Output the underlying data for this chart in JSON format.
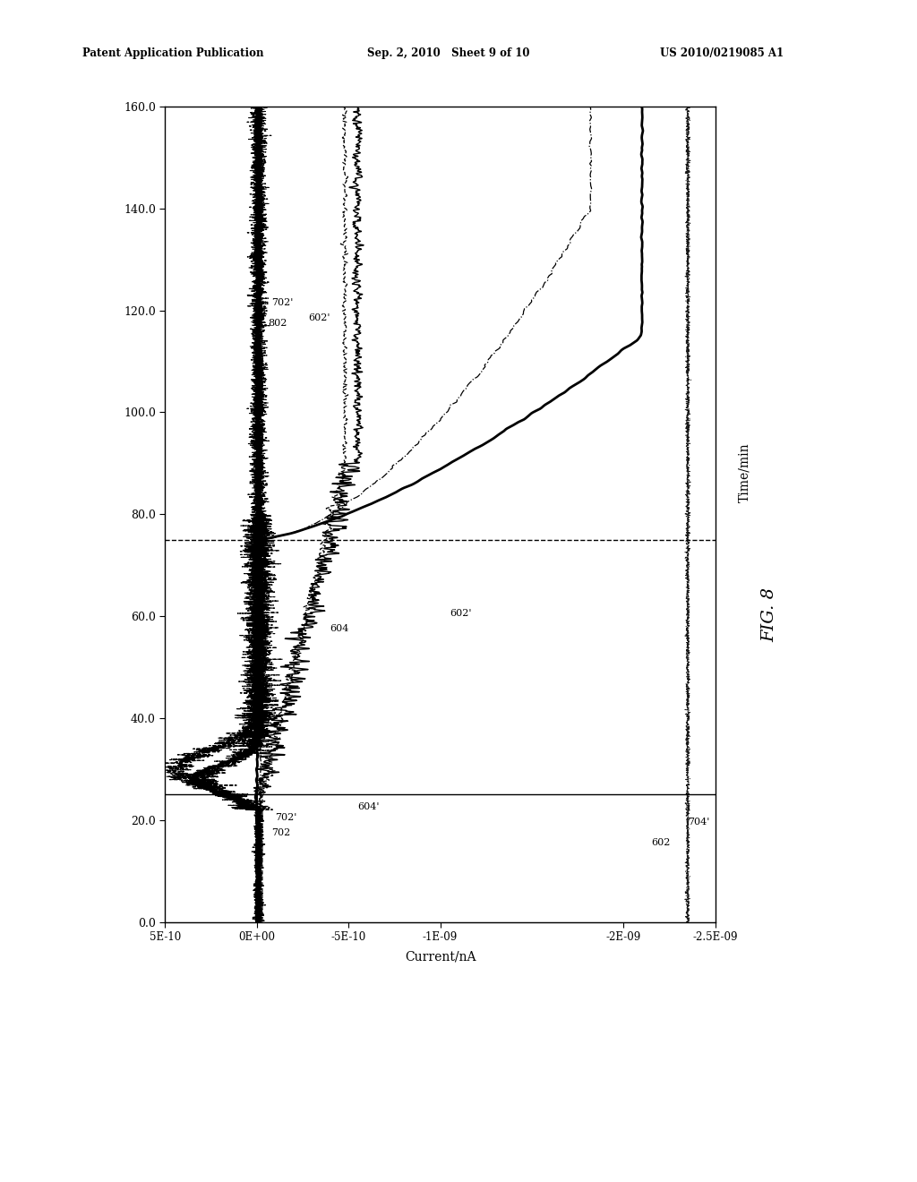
{
  "header_left": "Patent Application Publication",
  "header_mid": "Sep. 2, 2010   Sheet 9 of 10",
  "header_right": "US 2010/0219085 A1",
  "fig_label": "FIG. 8",
  "time_label": "Time/min",
  "current_label": "Current/nA",
  "time_ticks": [
    0.0,
    20.0,
    40.0,
    60.0,
    80.0,
    100.0,
    120.0,
    140.0,
    160.0
  ],
  "current_ticks_vals": [
    5e-10,
    0.0,
    -5e-10,
    -1e-09,
    -2e-09,
    -2.5e-09
  ],
  "current_ticks_labels": [
    "5E-10",
    "0E+00",
    "-5E-10",
    "-1E-09",
    "-2E-09",
    "-2.5E-09"
  ],
  "background_color": "#ffffff",
  "vertical_line_time": 0.0,
  "horiz_solid_time": 0.0,
  "horiz_dashed_current": -1.5e-10,
  "horiz_solid_current2": -2.3e-09
}
